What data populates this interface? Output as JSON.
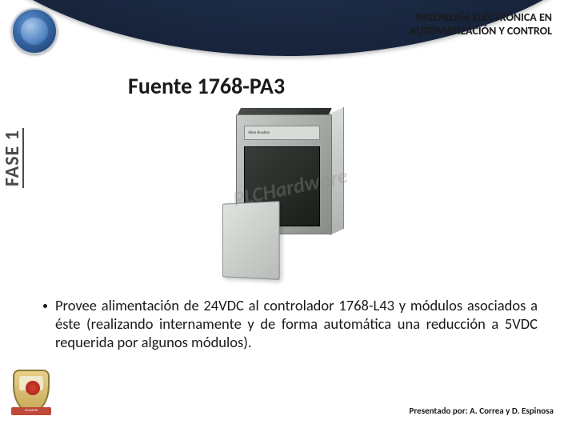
{
  "header": {
    "line1": "INGENIERÍA ELECTRÓNICA EN",
    "line2": "AUTOMATIZACIÓN Y CONTROL"
  },
  "title": "Fuente 1768-PA3",
  "phase_label": "FASE 1",
  "device": {
    "brand_label": "Allen-Bradley",
    "watermark": "PLCHardware"
  },
  "bullet": {
    "text": "Provee alimentación de 24VDC al controlador 1768-L43 y módulos asociados a éste (realizando internamente y de forma automática una reducción a 5VDC requerida por algunos módulos)."
  },
  "bottom_logo": {
    "ribbon": "ECUADOR"
  },
  "footer": "Presentado por: A. Correa y D. Espinosa",
  "colors": {
    "header_bg": "#1a2740",
    "text": "#1a1a1a",
    "phase": "#4a4a4a"
  }
}
